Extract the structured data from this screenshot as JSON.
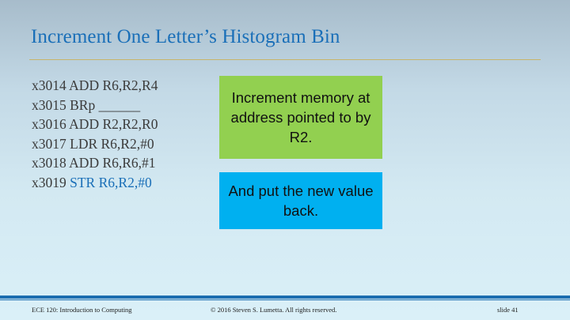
{
  "slide": {
    "title": "Increment One Letter’s Histogram Bin",
    "code_lines": [
      {
        "address": "x3014",
        "instruction": "ADD R6,R2,R4"
      },
      {
        "address": "x3015",
        "instruction": "BRp ______"
      },
      {
        "address": "x3016",
        "instruction": "ADD R2,R2,R0"
      },
      {
        "address": "x3017",
        "instruction": "LDR R6,R2,#0"
      },
      {
        "address": "x3018",
        "instruction": "ADD R6,R6,#1"
      },
      {
        "address": "x3019",
        "instruction": "STR R6,R2,#0"
      }
    ],
    "callouts": {
      "increment": "Increment memory at address pointed to by R2.",
      "store": "And put the new value back."
    }
  },
  "footer": {
    "course": "ECE 120: Introduction to Computing",
    "copyright": "© 2016 Steven S. Lumetta.  All rights reserved.",
    "slide_number": "slide 41"
  },
  "colors": {
    "title": "#1a6fb8",
    "highlight": "#1a6fb8",
    "green_callout": "#92d050",
    "blue_callout": "#00b0f0",
    "footer_bar": "#1d6db0"
  }
}
